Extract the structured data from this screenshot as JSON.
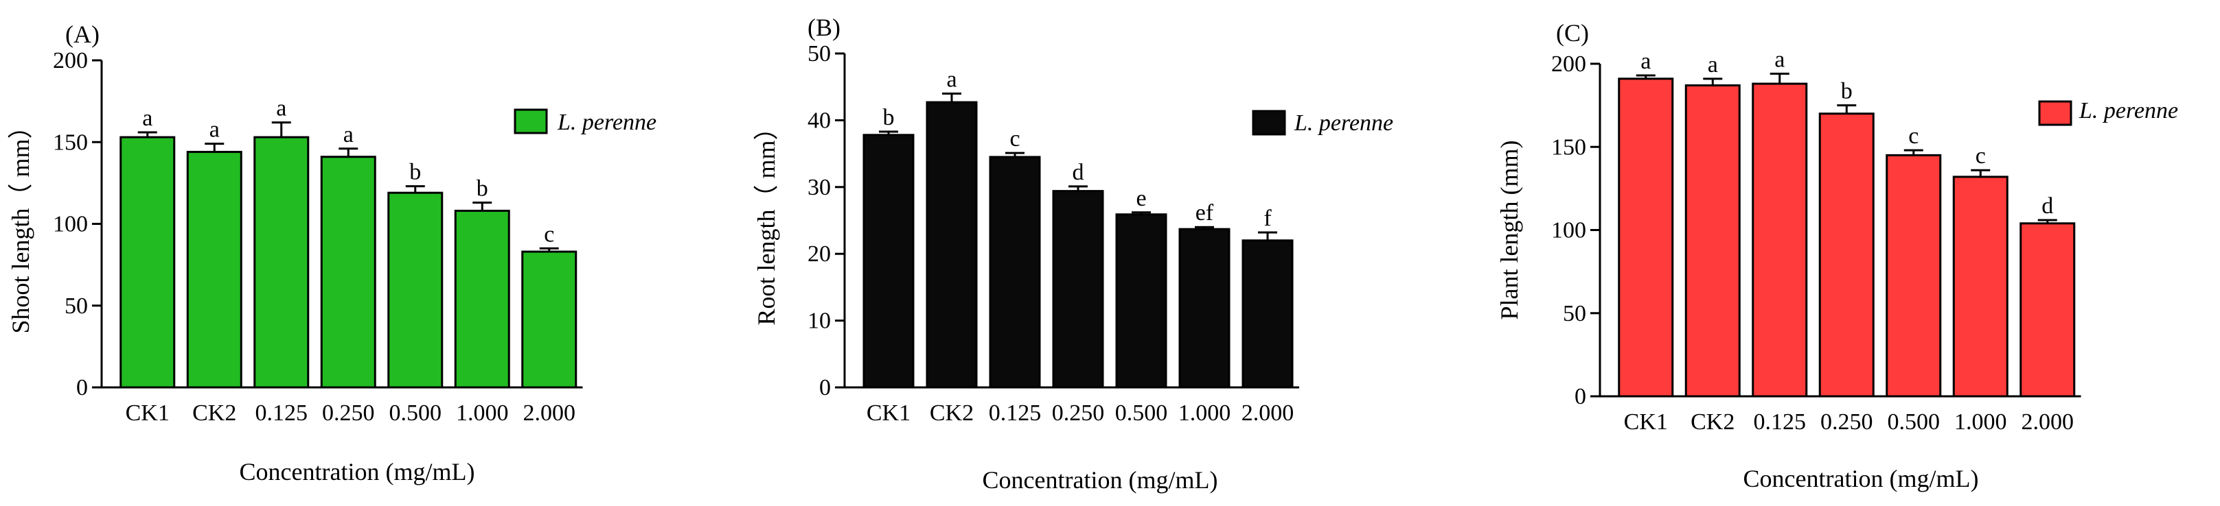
{
  "chart_data": [
    {
      "type": "bar",
      "panel_label": "(A)",
      "ylabel": "Shoot length（ mm）",
      "xlabel": "Concentration (mg/mL)",
      "categories": [
        "CK1",
        "CK2",
        "0.125",
        "0.250",
        "0.500",
        "1.000",
        "2.000"
      ],
      "values": [
        153,
        144,
        153,
        141,
        119,
        108,
        83
      ],
      "errors": [
        3,
        5,
        9,
        5,
        4,
        5,
        2
      ],
      "significance": [
        "a",
        "a",
        "a",
        "a",
        "b",
        "b",
        "c"
      ],
      "ylim": [
        0,
        200
      ],
      "yticks": [
        0,
        50,
        100,
        150,
        200
      ],
      "legend": "L. perenne",
      "color": "#22bb22"
    },
    {
      "type": "bar",
      "panel_label": "(B)",
      "ylabel": "Root length（ mm）",
      "xlabel": "Concentration (mg/mL)",
      "categories": [
        "CK1",
        "CK2",
        "0.125",
        "0.250",
        "0.500",
        "1.000",
        "2.000"
      ],
      "values": [
        37.8,
        42.7,
        34.5,
        29.4,
        25.9,
        23.7,
        22.0
      ],
      "errors": [
        0.5,
        1.3,
        0.6,
        0.7,
        0.3,
        0.3,
        1.2
      ],
      "significance": [
        "b",
        "a",
        "c",
        "d",
        "e",
        "ef",
        "f"
      ],
      "ylim": [
        0,
        50
      ],
      "yticks": [
        0,
        10,
        20,
        30,
        40,
        50
      ],
      "legend": "L. perenne",
      "color": "#0a0a0a"
    },
    {
      "type": "bar",
      "panel_label": "(C)",
      "ylabel": "Plant length (mm)",
      "xlabel": "Concentration (mg/mL)",
      "categories": [
        "CK1",
        "CK2",
        "0.125",
        "0.250",
        "0.500",
        "1.000",
        "2.000"
      ],
      "values": [
        191,
        187,
        188,
        170,
        145,
        132,
        104
      ],
      "errors": [
        2,
        4,
        6,
        5,
        3,
        4,
        2
      ],
      "significance": [
        "a",
        "a",
        "a",
        "b",
        "c",
        "c",
        "d"
      ],
      "ylim": [
        0,
        200
      ],
      "yticks": [
        0,
        50,
        100,
        150,
        200
      ],
      "legend": "L. perenne",
      "color": "#ff3b3b"
    }
  ]
}
